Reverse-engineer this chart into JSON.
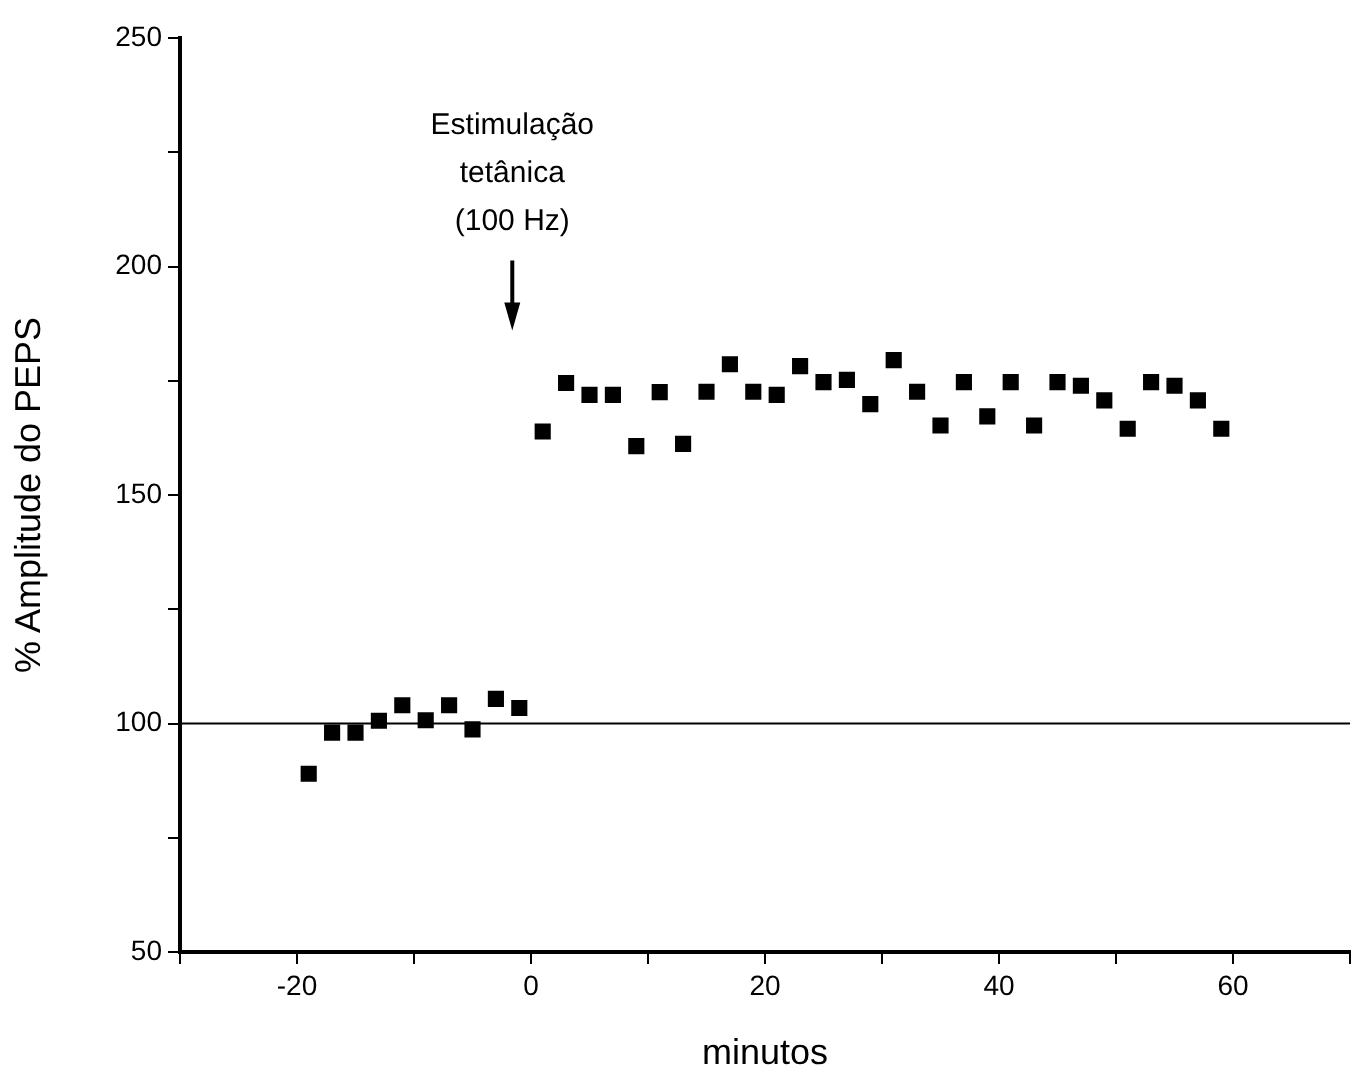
{
  "chart_data": {
    "type": "scatter",
    "xlabel": "minutos",
    "ylabel": "% Amplitude do PEPS",
    "marker": "square",
    "x": [
      -19,
      -17,
      -15,
      -13,
      -11,
      -9,
      -7,
      -5,
      -3,
      -1,
      1,
      3,
      5,
      7,
      9,
      11,
      13,
      15,
      17,
      19,
      21,
      23,
      25,
      27,
      29,
      31,
      33,
      35,
      37,
      39,
      41,
      43,
      45,
      47,
      49,
      51,
      53,
      55,
      57,
      59
    ],
    "series": [
      {
        "color": "#000000",
        "values": [
          89,
          98,
          98,
          100.6,
          104,
          100.7,
          104,
          98.7,
          105.4,
          103.4,
          163.9,
          174.5,
          171.9,
          171.9,
          160.7,
          172.5,
          161.2,
          172.6,
          178.6,
          172.6,
          171.9,
          178.2,
          174.7,
          175.2,
          169.9,
          179.5,
          172.6,
          165.2,
          174.7,
          167.2,
          174.7,
          165.2,
          174.7,
          173.9,
          170.7,
          164.5,
          174.7,
          173.9,
          170.7,
          164.5
        ]
      }
    ],
    "xlim": [
      -30,
      70
    ],
    "xticks": [
      {
        "value": -30,
        "label": null
      },
      -20,
      {
        "value": -10,
        "label": null
      },
      0,
      {
        "value": 10,
        "label": null
      },
      20,
      {
        "value": 30,
        "label": null
      },
      40,
      {
        "value": 50,
        "label": null
      },
      60,
      {
        "value": 70,
        "label": null
      }
    ],
    "ylim": [
      50,
      250
    ],
    "yticks": [
      50,
      {
        "value": 75,
        "label": null
      },
      100,
      {
        "value": 125,
        "label": null
      },
      150,
      {
        "value": 175,
        "label": null
      },
      200,
      {
        "value": 225,
        "label": null
      },
      250
    ],
    "ref_lines": [
      {
        "axis": "y",
        "value": 100,
        "color": "#000000"
      }
    ],
    "annotations": [
      "Estimulação\ntetânica\n(100 Hz)"
    ]
  }
}
